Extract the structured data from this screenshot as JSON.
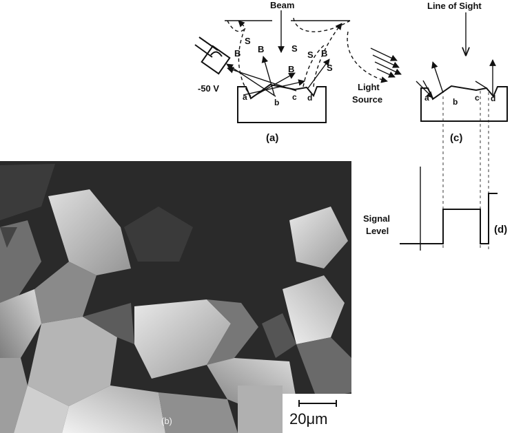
{
  "labels": {
    "beam": "Beam",
    "line_of_sight": "Line of Sight",
    "voltage": "-50 V",
    "light": "Light",
    "source": "Source",
    "signal": "Signal",
    "level": "Level",
    "scale": "20μm"
  },
  "panels": [
    "(a)",
    "(b)",
    "(c)",
    "(d)"
  ],
  "points": [
    "a",
    "b",
    "c",
    "d"
  ],
  "electron_types": [
    "B",
    "S"
  ]
}
